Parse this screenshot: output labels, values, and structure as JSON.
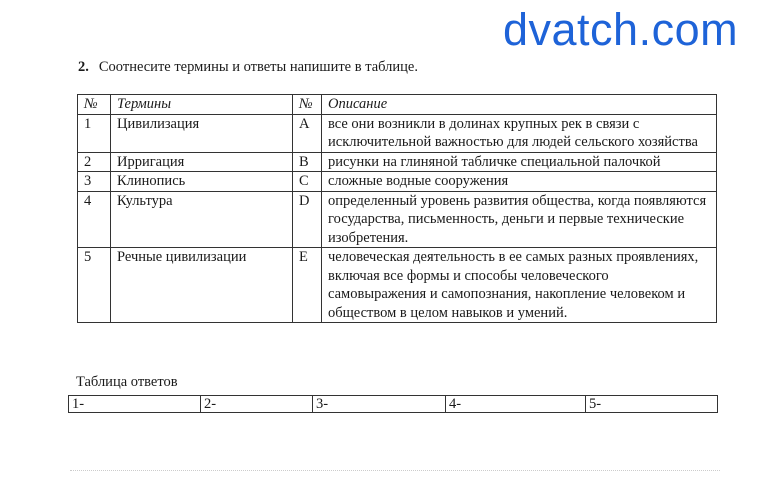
{
  "watermark": "dvatch.com",
  "task": {
    "number": "2.",
    "text": "Соотнесите термины и ответы напишите в таблице."
  },
  "table": {
    "headers": [
      "№",
      "Термины",
      "№",
      "Описание"
    ],
    "rows": [
      {
        "num": "1",
        "term": "Цивилизация",
        "letter": "A",
        "desc": "все они возникли в долинах крупных рек в связи с исключительной важностью для  людей сельского хозяйства"
      },
      {
        "num": "2",
        "term": "Ирригация",
        "letter": "B",
        "desc": "рисунки на глиняной табличке специальной палочкой"
      },
      {
        "num": "3",
        "term": "Клинопись",
        "letter": "C",
        "desc": "сложные водные сооружения"
      },
      {
        "num": "4",
        "term": "Культура",
        "letter": "D",
        "desc": "определенный уровень развития общества, когда появляются государства, письменность, деньги и первые технические изобретения."
      },
      {
        "num": "5",
        "term": "Речные цивилизации",
        "letter": "E",
        "desc": "человеческая деятельность в ее самых разных проявлениях, включая все формы и способы человеческого самовыражения и самопознания, накопление человеком и обществом в целом навыков и умений."
      }
    ]
  },
  "answers": {
    "label": "Таблица ответов",
    "cells": [
      "1-",
      "2-",
      "3-",
      "4-",
      "5-"
    ]
  }
}
